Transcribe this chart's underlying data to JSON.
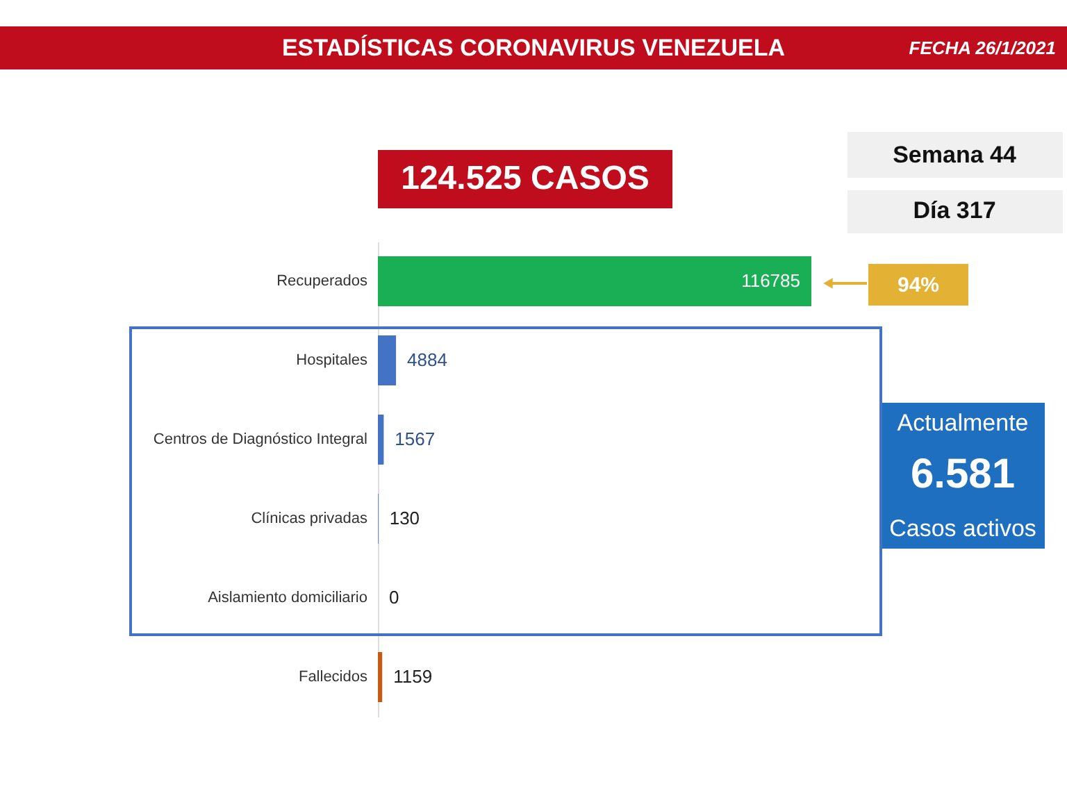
{
  "chart_data": {
    "type": "bar",
    "orientation": "horizontal",
    "title": "ESTADÍSTICAS CORONAVIRUS VENEZUELA",
    "categories": [
      "Recuperados",
      "Hospitales",
      "Centros de Diagnóstico Integral",
      "Clínicas privadas",
      "Aislamiento domiciliario",
      "Fallecidos"
    ],
    "values": [
      116785,
      4884,
      1567,
      130,
      0,
      1159
    ],
    "colors": [
      "#1aaf54",
      "#4472c4",
      "#4472c4",
      "#4472c4",
      "#4472c4",
      "#c55a11"
    ],
    "data_labels": true,
    "legend": false,
    "tick_labels": "y",
    "annotations": [
      "FECHA 26/1/2021",
      "124.525 CASOS",
      "Semana 44",
      "Día 317",
      "94%",
      "Actualmente",
      "6.581",
      "Casos activos"
    ]
  }
}
